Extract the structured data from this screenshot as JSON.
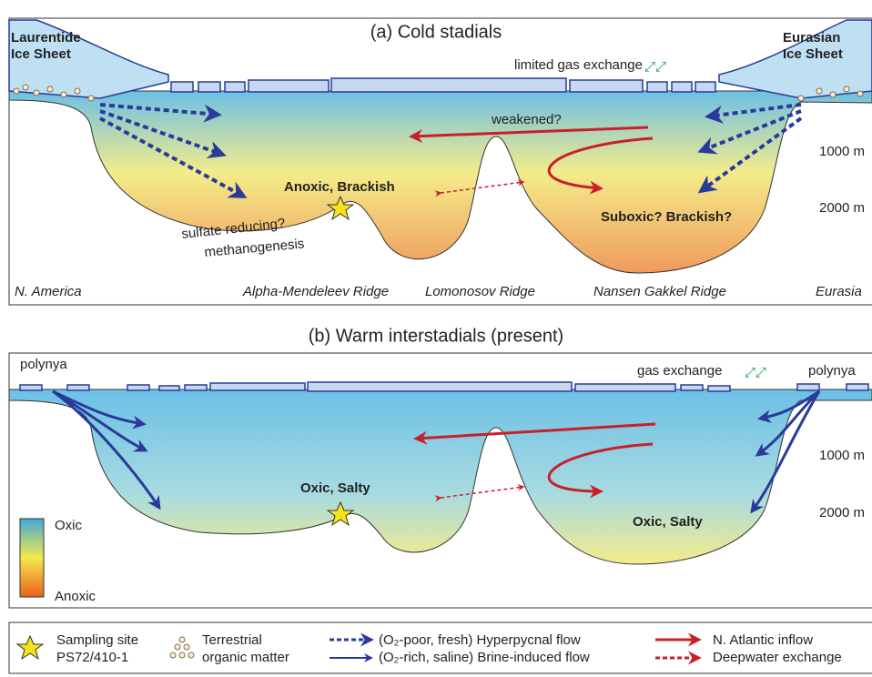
{
  "panel_a": {
    "title": "(a) Cold stadials",
    "left_ice": [
      "Laurentide",
      "Ice Sheet"
    ],
    "right_ice": [
      "Eurasian",
      "Ice Sheet"
    ],
    "gas": "limited gas exchange",
    "weakened": "weakened?",
    "anoxic": "Anoxic, Brackish",
    "suboxic": "Suboxic? Brackish?",
    "sulfate": "sulfate reducing?",
    "methano": "methanogenesis",
    "depth1": "1000 m",
    "depth2": "2000 m",
    "locations": [
      "N. America",
      "Alpha-Mendeleev Ridge",
      "Lomonosov Ridge",
      "Nansen Gakkel Ridge",
      "Eurasia"
    ]
  },
  "panel_b": {
    "title": "(b) Warm interstadials (present)",
    "polynya_left": "polynya",
    "polynya_right": "polynya",
    "gas": "gas exchange",
    "oxic_left": "Oxic, Salty",
    "oxic_right": "Oxic, Salty",
    "depth1": "1000 m",
    "depth2": "2000 m",
    "scale_top": "Oxic",
    "scale_bottom": "Anoxic"
  },
  "legend": {
    "site": [
      "Sampling site",
      "PS72/410-1"
    ],
    "organic": [
      "Terrestrial",
      "organic matter"
    ],
    "hyper": "(O₂-poor, fresh) Hyperpycnal flow",
    "brine": "(O₂-rich, saline) Brine-induced flow",
    "atlantic": "N. Atlantic inflow",
    "deep": "Deepwater exchange"
  }
}
